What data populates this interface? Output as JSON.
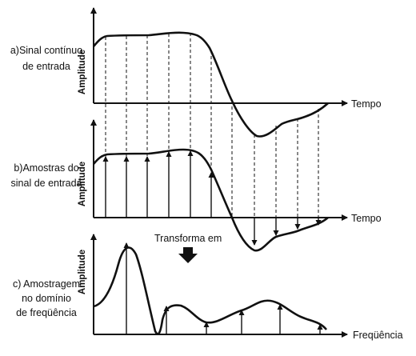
{
  "panels": [
    {
      "id": "a",
      "label_lines": [
        "a)Sinal contínuo",
        "de entrada"
      ],
      "y_axis_label": "Amplitude",
      "x_axis_label": "Tempo"
    },
    {
      "id": "b",
      "label_lines": [
        "b)Amostras do",
        "sinal de entrada"
      ],
      "y_axis_label": "Amplitude",
      "x_axis_label": "Tempo"
    },
    {
      "id": "c",
      "label_lines": [
        "c) Amostragem",
        "no domínio",
        "de freqüência"
      ],
      "y_axis_label": "Amplitude",
      "x_axis_label": "Freqüência"
    }
  ],
  "transform_label": "Transforma em"
}
